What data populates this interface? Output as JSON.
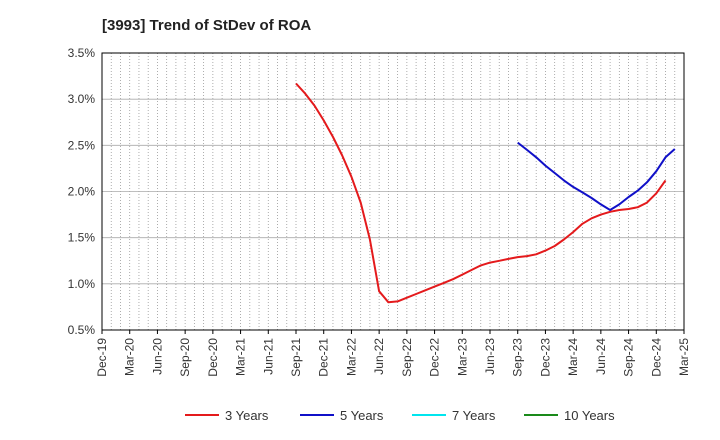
{
  "chart_data": {
    "type": "line",
    "title": "[3993]  Trend of StDev of ROA",
    "xlabel": "",
    "ylabel": "",
    "x": [
      "Dec-19",
      "Mar-20",
      "Jun-20",
      "Sep-20",
      "Dec-20",
      "Mar-21",
      "Jun-21",
      "Sep-21",
      "Dec-21",
      "Mar-22",
      "Jun-22",
      "Sep-22",
      "Dec-22",
      "Mar-23",
      "Jun-23",
      "Sep-23",
      "Dec-23",
      "Mar-24",
      "Jun-24",
      "Sep-24",
      "Dec-24",
      "Mar-25"
    ],
    "ylim": [
      0.5,
      3.5
    ],
    "yticks": [
      "0.5%",
      "1.0%",
      "1.5%",
      "2.0%",
      "2.5%",
      "3.0%",
      "3.5%"
    ],
    "grid": true,
    "legend_position": "bottom",
    "series": [
      {
        "name": "3 Years",
        "color": "#e41a1c",
        "points": [
          [
            "Sep-21",
            3.17
          ],
          [
            "Oct-21",
            3.06
          ],
          [
            "Nov-21",
            2.93
          ],
          [
            "Dec-21",
            2.77
          ],
          [
            "Jan-22",
            2.59
          ],
          [
            "Feb-22",
            2.39
          ],
          [
            "Mar-22",
            2.16
          ],
          [
            "Apr-22",
            1.88
          ],
          [
            "May-22",
            1.48
          ],
          [
            "Jun-22",
            0.92
          ],
          [
            "Jul-22",
            0.8
          ],
          [
            "Aug-22",
            0.81
          ],
          [
            "Sep-22",
            0.85
          ],
          [
            "Oct-22",
            0.89
          ],
          [
            "Nov-22",
            0.93
          ],
          [
            "Dec-22",
            0.97
          ],
          [
            "Jan-23",
            1.01
          ],
          [
            "Feb-23",
            1.05
          ],
          [
            "Mar-23",
            1.1
          ],
          [
            "Apr-23",
            1.15
          ],
          [
            "May-23",
            1.2
          ],
          [
            "Jun-23",
            1.23
          ],
          [
            "Jul-23",
            1.25
          ],
          [
            "Aug-23",
            1.27
          ],
          [
            "Sep-23",
            1.29
          ],
          [
            "Oct-23",
            1.3
          ],
          [
            "Nov-23",
            1.32
          ],
          [
            "Dec-23",
            1.36
          ],
          [
            "Jan-24",
            1.41
          ],
          [
            "Feb-24",
            1.48
          ],
          [
            "Mar-24",
            1.56
          ],
          [
            "Apr-24",
            1.65
          ],
          [
            "May-24",
            1.71
          ],
          [
            "Jun-24",
            1.75
          ],
          [
            "Jul-24",
            1.78
          ],
          [
            "Aug-24",
            1.8
          ],
          [
            "Sep-24",
            1.81
          ],
          [
            "Oct-24",
            1.83
          ],
          [
            "Nov-24",
            1.88
          ],
          [
            "Dec-24",
            1.98
          ],
          [
            "Jan-25",
            2.12
          ]
        ]
      },
      {
        "name": "5 Years",
        "color": "#1010c8",
        "points": [
          [
            "Sep-23",
            2.53
          ],
          [
            "Oct-23",
            2.45
          ],
          [
            "Nov-23",
            2.37
          ],
          [
            "Dec-23",
            2.28
          ],
          [
            "Jan-24",
            2.2
          ],
          [
            "Feb-24",
            2.12
          ],
          [
            "Mar-24",
            2.05
          ],
          [
            "Apr-24",
            1.99
          ],
          [
            "May-24",
            1.93
          ],
          [
            "Jun-24",
            1.86
          ],
          [
            "Jul-24",
            1.8
          ],
          [
            "Aug-24",
            1.86
          ],
          [
            "Sep-24",
            1.94
          ],
          [
            "Oct-24",
            2.01
          ],
          [
            "Nov-24",
            2.1
          ],
          [
            "Dec-24",
            2.22
          ],
          [
            "Jan-25",
            2.37
          ],
          [
            "Feb-25",
            2.46
          ]
        ]
      },
      {
        "name": "7 Years",
        "color": "#00e5ee",
        "points": []
      },
      {
        "name": "10 Years",
        "color": "#1a8a1a",
        "points": []
      }
    ]
  }
}
